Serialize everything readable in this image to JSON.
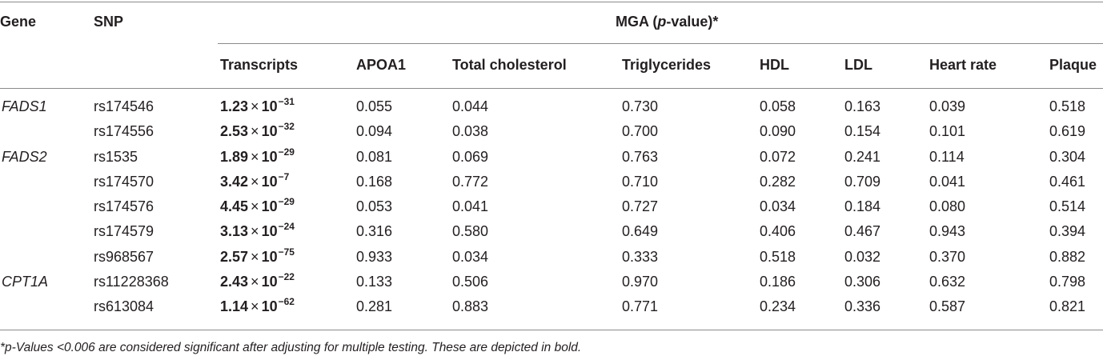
{
  "table": {
    "headers": {
      "gene": "Gene",
      "snp": "SNP",
      "group_prefix": "MGA (",
      "group_italic": "p",
      "group_suffix": "-value)*",
      "columns": [
        "Transcripts",
        "APOA1",
        "Total cholesterol",
        "Triglycerides",
        "HDL",
        "LDL",
        "Heart rate",
        "Plaque"
      ]
    },
    "rows": [
      {
        "gene": "FADS1",
        "snp": "rs174546",
        "transcripts": {
          "mantissa": "1.23",
          "times": "×",
          "base": "10",
          "exponent": "−31"
        },
        "values": [
          "0.055",
          "0.044",
          "0.730",
          "0.058",
          "0.163",
          "0.039",
          "0.518"
        ]
      },
      {
        "gene": "",
        "snp": "rs174556",
        "transcripts": {
          "mantissa": "2.53",
          "times": "×",
          "base": "10",
          "exponent": "−32"
        },
        "values": [
          "0.094",
          "0.038",
          "0.700",
          "0.090",
          "0.154",
          "0.101",
          "0.619"
        ]
      },
      {
        "gene": "FADS2",
        "snp": "rs1535",
        "transcripts": {
          "mantissa": "1.89",
          "times": "×",
          "base": "10",
          "exponent": "−29"
        },
        "values": [
          "0.081",
          "0.069",
          "0.763",
          "0.072",
          "0.241",
          "0.114",
          "0.304"
        ]
      },
      {
        "gene": "",
        "snp": "rs174570",
        "transcripts": {
          "mantissa": "3.42",
          "times": "×",
          "base": "10",
          "exponent": "−7"
        },
        "values": [
          "0.168",
          "0.772",
          "0.710",
          "0.282",
          "0.709",
          "0.041",
          "0.461"
        ]
      },
      {
        "gene": "",
        "snp": "rs174576",
        "transcripts": {
          "mantissa": "4.45",
          "times": "×",
          "base": "10",
          "exponent": "−29"
        },
        "values": [
          "0.053",
          "0.041",
          "0.727",
          "0.034",
          "0.184",
          "0.080",
          "0.514"
        ]
      },
      {
        "gene": "",
        "snp": "rs174579",
        "transcripts": {
          "mantissa": "3.13",
          "times": "×",
          "base": "10",
          "exponent": "−24"
        },
        "values": [
          "0.316",
          "0.580",
          "0.649",
          "0.406",
          "0.467",
          "0.943",
          "0.394"
        ]
      },
      {
        "gene": "",
        "snp": "rs968567",
        "transcripts": {
          "mantissa": "2.57",
          "times": "×",
          "base": "10",
          "exponent": "−75"
        },
        "values": [
          "0.933",
          "0.034",
          "0.333",
          "0.518",
          "0.032",
          "0.370",
          "0.882"
        ]
      },
      {
        "gene": "CPT1A",
        "snp": "rs11228368",
        "transcripts": {
          "mantissa": "2.43",
          "times": "×",
          "base": "10",
          "exponent": "−22"
        },
        "values": [
          "0.133",
          "0.506",
          "0.970",
          "0.186",
          "0.306",
          "0.632",
          "0.798"
        ]
      },
      {
        "gene": "",
        "snp": "rs613084",
        "transcripts": {
          "mantissa": "1.14",
          "times": "×",
          "base": "10",
          "exponent": "−62"
        },
        "values": [
          "0.281",
          "0.883",
          "0.771",
          "0.234",
          "0.336",
          "0.587",
          "0.821"
        ]
      }
    ]
  },
  "footnote": "*p-Values <0.006 are considered significant after adjusting for multiple testing. These are depicted in bold."
}
